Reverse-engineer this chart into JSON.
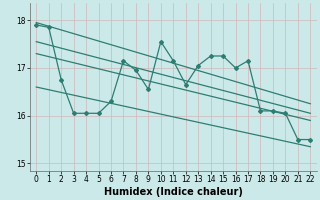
{
  "xlabel": "Humidex (Indice chaleur)",
  "ylabel": "",
  "background_color": "#cce9e9",
  "grid_color": "#b0d8d8",
  "line_color": "#2e7d72",
  "xlim": [
    -0.5,
    22.5
  ],
  "ylim": [
    14.85,
    18.35
  ],
  "yticks": [
    15,
    16,
    17,
    18
  ],
  "xticks": [
    0,
    1,
    2,
    3,
    4,
    5,
    6,
    7,
    8,
    9,
    10,
    11,
    12,
    13,
    14,
    15,
    16,
    17,
    18,
    19,
    20,
    21,
    22
  ],
  "data_line": {
    "x": [
      0,
      1,
      2,
      3,
      4,
      5,
      6,
      7,
      8,
      9,
      10,
      11,
      12,
      13,
      14,
      15,
      16,
      17,
      18,
      19,
      20,
      21,
      22
    ],
    "y": [
      17.9,
      17.85,
      16.75,
      16.05,
      16.05,
      16.05,
      16.3,
      17.15,
      16.95,
      16.55,
      17.55,
      17.15,
      16.65,
      17.05,
      17.25,
      17.25,
      17.0,
      17.15,
      16.1,
      16.1,
      16.05,
      15.5,
      15.5
    ]
  },
  "upper_line": {
    "x": [
      0,
      22
    ],
    "y": [
      17.95,
      16.25
    ]
  },
  "middle_upper_line": {
    "x": [
      0,
      22
    ],
    "y": [
      17.55,
      16.05
    ]
  },
  "middle_lower_line": {
    "x": [
      0,
      22
    ],
    "y": [
      17.3,
      15.9
    ]
  },
  "lower_line": {
    "x": [
      0,
      22
    ],
    "y": [
      16.6,
      15.35
    ]
  }
}
